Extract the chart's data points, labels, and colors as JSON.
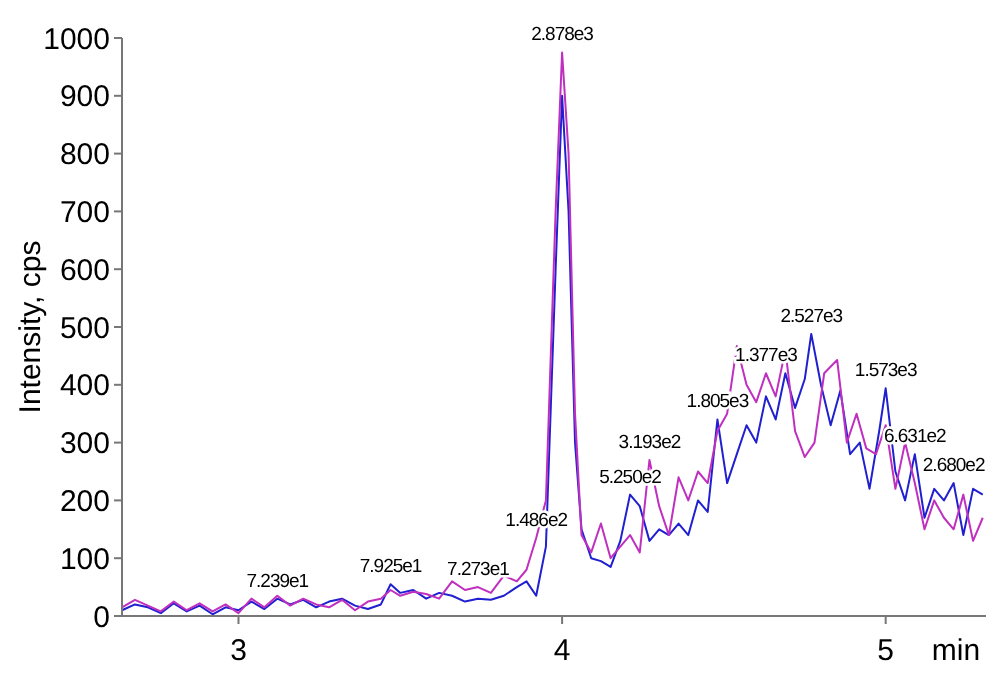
{
  "chart_data": {
    "type": "line",
    "xlabel": "min",
    "ylabel": "Intensity, cps",
    "xlim": [
      2.64,
      5.31
    ],
    "xticks": [
      3,
      4,
      5
    ],
    "ylim": [
      0,
      1000
    ],
    "yticks": [
      0,
      100,
      200,
      300,
      400,
      500,
      600,
      700,
      800,
      900,
      1000
    ],
    "grid": false,
    "marker": "none",
    "line_style": "solid",
    "series": [
      {
        "color": "#2020d0",
        "x": [
          2.64,
          2.68,
          2.72,
          2.76,
          2.8,
          2.84,
          2.88,
          2.92,
          2.96,
          3.0,
          3.04,
          3.08,
          3.12,
          3.16,
          3.2,
          3.24,
          3.28,
          3.32,
          3.36,
          3.4,
          3.44,
          3.47,
          3.5,
          3.54,
          3.58,
          3.62,
          3.66,
          3.7,
          3.74,
          3.78,
          3.82,
          3.86,
          3.89,
          3.92,
          3.95,
          3.98,
          4.0,
          4.02,
          4.04,
          4.06,
          4.09,
          4.12,
          4.15,
          4.18,
          4.21,
          4.24,
          4.27,
          4.3,
          4.33,
          4.36,
          4.39,
          4.42,
          4.45,
          4.48,
          4.51,
          4.54,
          4.57,
          4.6,
          4.63,
          4.66,
          4.69,
          4.72,
          4.75,
          4.77,
          4.8,
          4.83,
          4.86,
          4.89,
          4.92,
          4.95,
          4.98,
          5.0,
          5.03,
          5.06,
          5.09,
          5.12,
          5.15,
          5.18,
          5.21,
          5.24,
          5.27,
          5.3
        ],
        "values": [
          10,
          20,
          15,
          5,
          22,
          8,
          18,
          3,
          15,
          10,
          25,
          12,
          30,
          20,
          28,
          15,
          25,
          30,
          18,
          12,
          20,
          55,
          40,
          45,
          30,
          40,
          35,
          25,
          30,
          28,
          35,
          50,
          60,
          35,
          120,
          600,
          900,
          700,
          300,
          150,
          100,
          95,
          85,
          130,
          210,
          190,
          130,
          150,
          140,
          160,
          140,
          200,
          180,
          340,
          230,
          280,
          330,
          300,
          380,
          340,
          420,
          360,
          410,
          488,
          400,
          330,
          390,
          280,
          300,
          220,
          320,
          394,
          250,
          200,
          280,
          170,
          220,
          200,
          230,
          140,
          220,
          210
        ]
      },
      {
        "color": "#c030c0",
        "x": [
          2.64,
          2.68,
          2.72,
          2.76,
          2.8,
          2.84,
          2.88,
          2.92,
          2.96,
          3.0,
          3.04,
          3.08,
          3.12,
          3.16,
          3.2,
          3.24,
          3.28,
          3.32,
          3.36,
          3.4,
          3.44,
          3.47,
          3.5,
          3.54,
          3.58,
          3.62,
          3.66,
          3.7,
          3.74,
          3.78,
          3.82,
          3.86,
          3.89,
          3.92,
          3.95,
          3.98,
          4.0,
          4.02,
          4.04,
          4.06,
          4.09,
          4.12,
          4.15,
          4.18,
          4.21,
          4.24,
          4.27,
          4.3,
          4.33,
          4.36,
          4.39,
          4.42,
          4.45,
          4.48,
          4.51,
          4.54,
          4.57,
          4.6,
          4.63,
          4.66,
          4.69,
          4.72,
          4.75,
          4.78,
          4.81,
          4.85,
          4.88,
          4.91,
          4.94,
          4.97,
          5.0,
          5.03,
          5.06,
          5.09,
          5.12,
          5.15,
          5.18,
          5.21,
          5.24,
          5.27,
          5.3
        ],
        "values": [
          15,
          28,
          18,
          8,
          25,
          10,
          22,
          8,
          20,
          5,
          30,
          15,
          35,
          18,
          30,
          20,
          15,
          28,
          10,
          25,
          30,
          45,
          35,
          42,
          38,
          30,
          60,
          45,
          50,
          40,
          70,
          60,
          80,
          135,
          200,
          700,
          975,
          800,
          350,
          140,
          110,
          160,
          100,
          120,
          140,
          110,
          270,
          190,
          140,
          240,
          200,
          250,
          230,
          320,
          350,
          467,
          400,
          370,
          420,
          380,
          460,
          320,
          275,
          300,
          420,
          443,
          300,
          350,
          290,
          280,
          330,
          220,
          300,
          230,
          150,
          200,
          170,
          150,
          210,
          130,
          170
        ]
      }
    ],
    "annotations": [
      {
        "text": "7.239e1",
        "x": 3.12,
        "y": 30
      },
      {
        "text": "7.925e1",
        "x": 3.47,
        "y": 55
      },
      {
        "text": "7.273e1",
        "x": 3.74,
        "y": 50
      },
      {
        "text": "1.486e2",
        "x": 3.92,
        "y": 135
      },
      {
        "text": "2.878e3",
        "x": 4.0,
        "y": 975
      },
      {
        "text": "5.250e2",
        "x": 4.21,
        "y": 210
      },
      {
        "text": "3.193e2",
        "x": 4.27,
        "y": 270
      },
      {
        "text": "1.805e3",
        "x": 4.48,
        "y": 340
      },
      {
        "text": "1.377e3",
        "x": 4.63,
        "y": 420
      },
      {
        "text": "2.527e3",
        "x": 4.77,
        "y": 488
      },
      {
        "text": "1.573e3",
        "x": 5.0,
        "y": 394
      },
      {
        "text": "6.631e2",
        "x": 5.09,
        "y": 280
      },
      {
        "text": "2.680e2",
        "x": 5.21,
        "y": 230
      }
    ]
  }
}
